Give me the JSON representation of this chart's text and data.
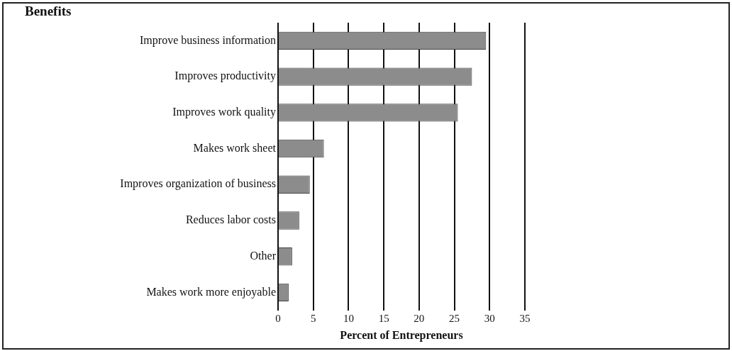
{
  "chart_data": {
    "type": "bar",
    "orientation": "horizontal",
    "annotations": [
      "Benefits"
    ],
    "xlabel": "Percent of Entrepreneurs",
    "categories": [
      "Improve business information",
      "Improves productivity",
      "Improves work quality",
      "Makes work sheet",
      "Improves organization of business",
      "Reduces labor costs",
      "Other",
      "Makes work more enjoyable"
    ],
    "values": [
      29.5,
      27.5,
      25.5,
      6.5,
      4.5,
      3,
      2,
      1.5
    ],
    "color": "#8c8c8c",
    "xlim": [
      0,
      35
    ],
    "xticks": [
      0,
      5,
      10,
      15,
      20,
      25,
      30,
      35
    ],
    "grid": "x",
    "legend": false
  }
}
